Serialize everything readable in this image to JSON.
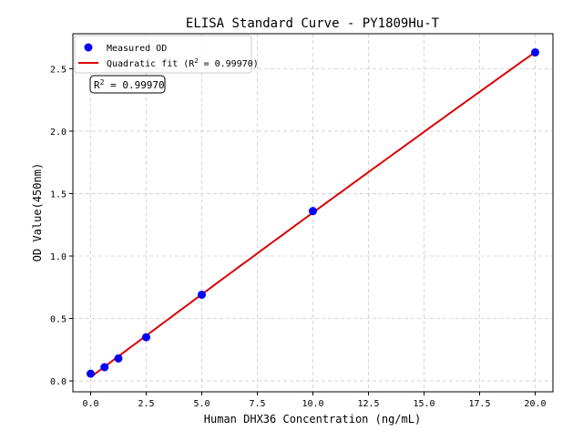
{
  "chart_data": {
    "type": "scatter",
    "title": "ELISA Standard Curve - PY1809Hu-T",
    "xlabel": "Human DHX36 Concentration (ng/mL)",
    "ylabel": "OD Value(450nm)",
    "xlim": [
      -0.8,
      20.8
    ],
    "ylim": [
      -0.087,
      2.78
    ],
    "xticks": [
      0,
      2.5,
      5,
      7.5,
      10,
      12.5,
      15,
      17.5,
      20
    ],
    "xtick_labels": [
      "0.0",
      "2.5",
      "5.0",
      "7.5",
      "10.0",
      "12.5",
      "15.0",
      "17.5",
      "20.0"
    ],
    "yticks": [
      0,
      0.5,
      1.0,
      1.5,
      2.0,
      2.5
    ],
    "ytick_labels": [
      "0.0",
      "0.5",
      "1.0",
      "1.5",
      "2.0",
      "2.5"
    ],
    "grid": true,
    "legend_placement": "top-left",
    "series": [
      {
        "name": "Measured OD",
        "type": "scatter",
        "color": "#0000ff",
        "x": [
          0,
          0.625,
          1.25,
          2.5,
          5,
          10,
          20
        ],
        "y": [
          0.058,
          0.11,
          0.18,
          0.35,
          0.69,
          1.36,
          2.63
        ]
      },
      {
        "name": "Quadratic fit",
        "type": "line",
        "color": "#dd0000"
      }
    ],
    "legend": {
      "measured": "Measured OD",
      "fit_prefix": "Quadratic fit (R",
      "fit_suffix": " = 0.99970)"
    },
    "annotation": {
      "prefix": "R",
      "suffix": " = 0.99970"
    }
  }
}
